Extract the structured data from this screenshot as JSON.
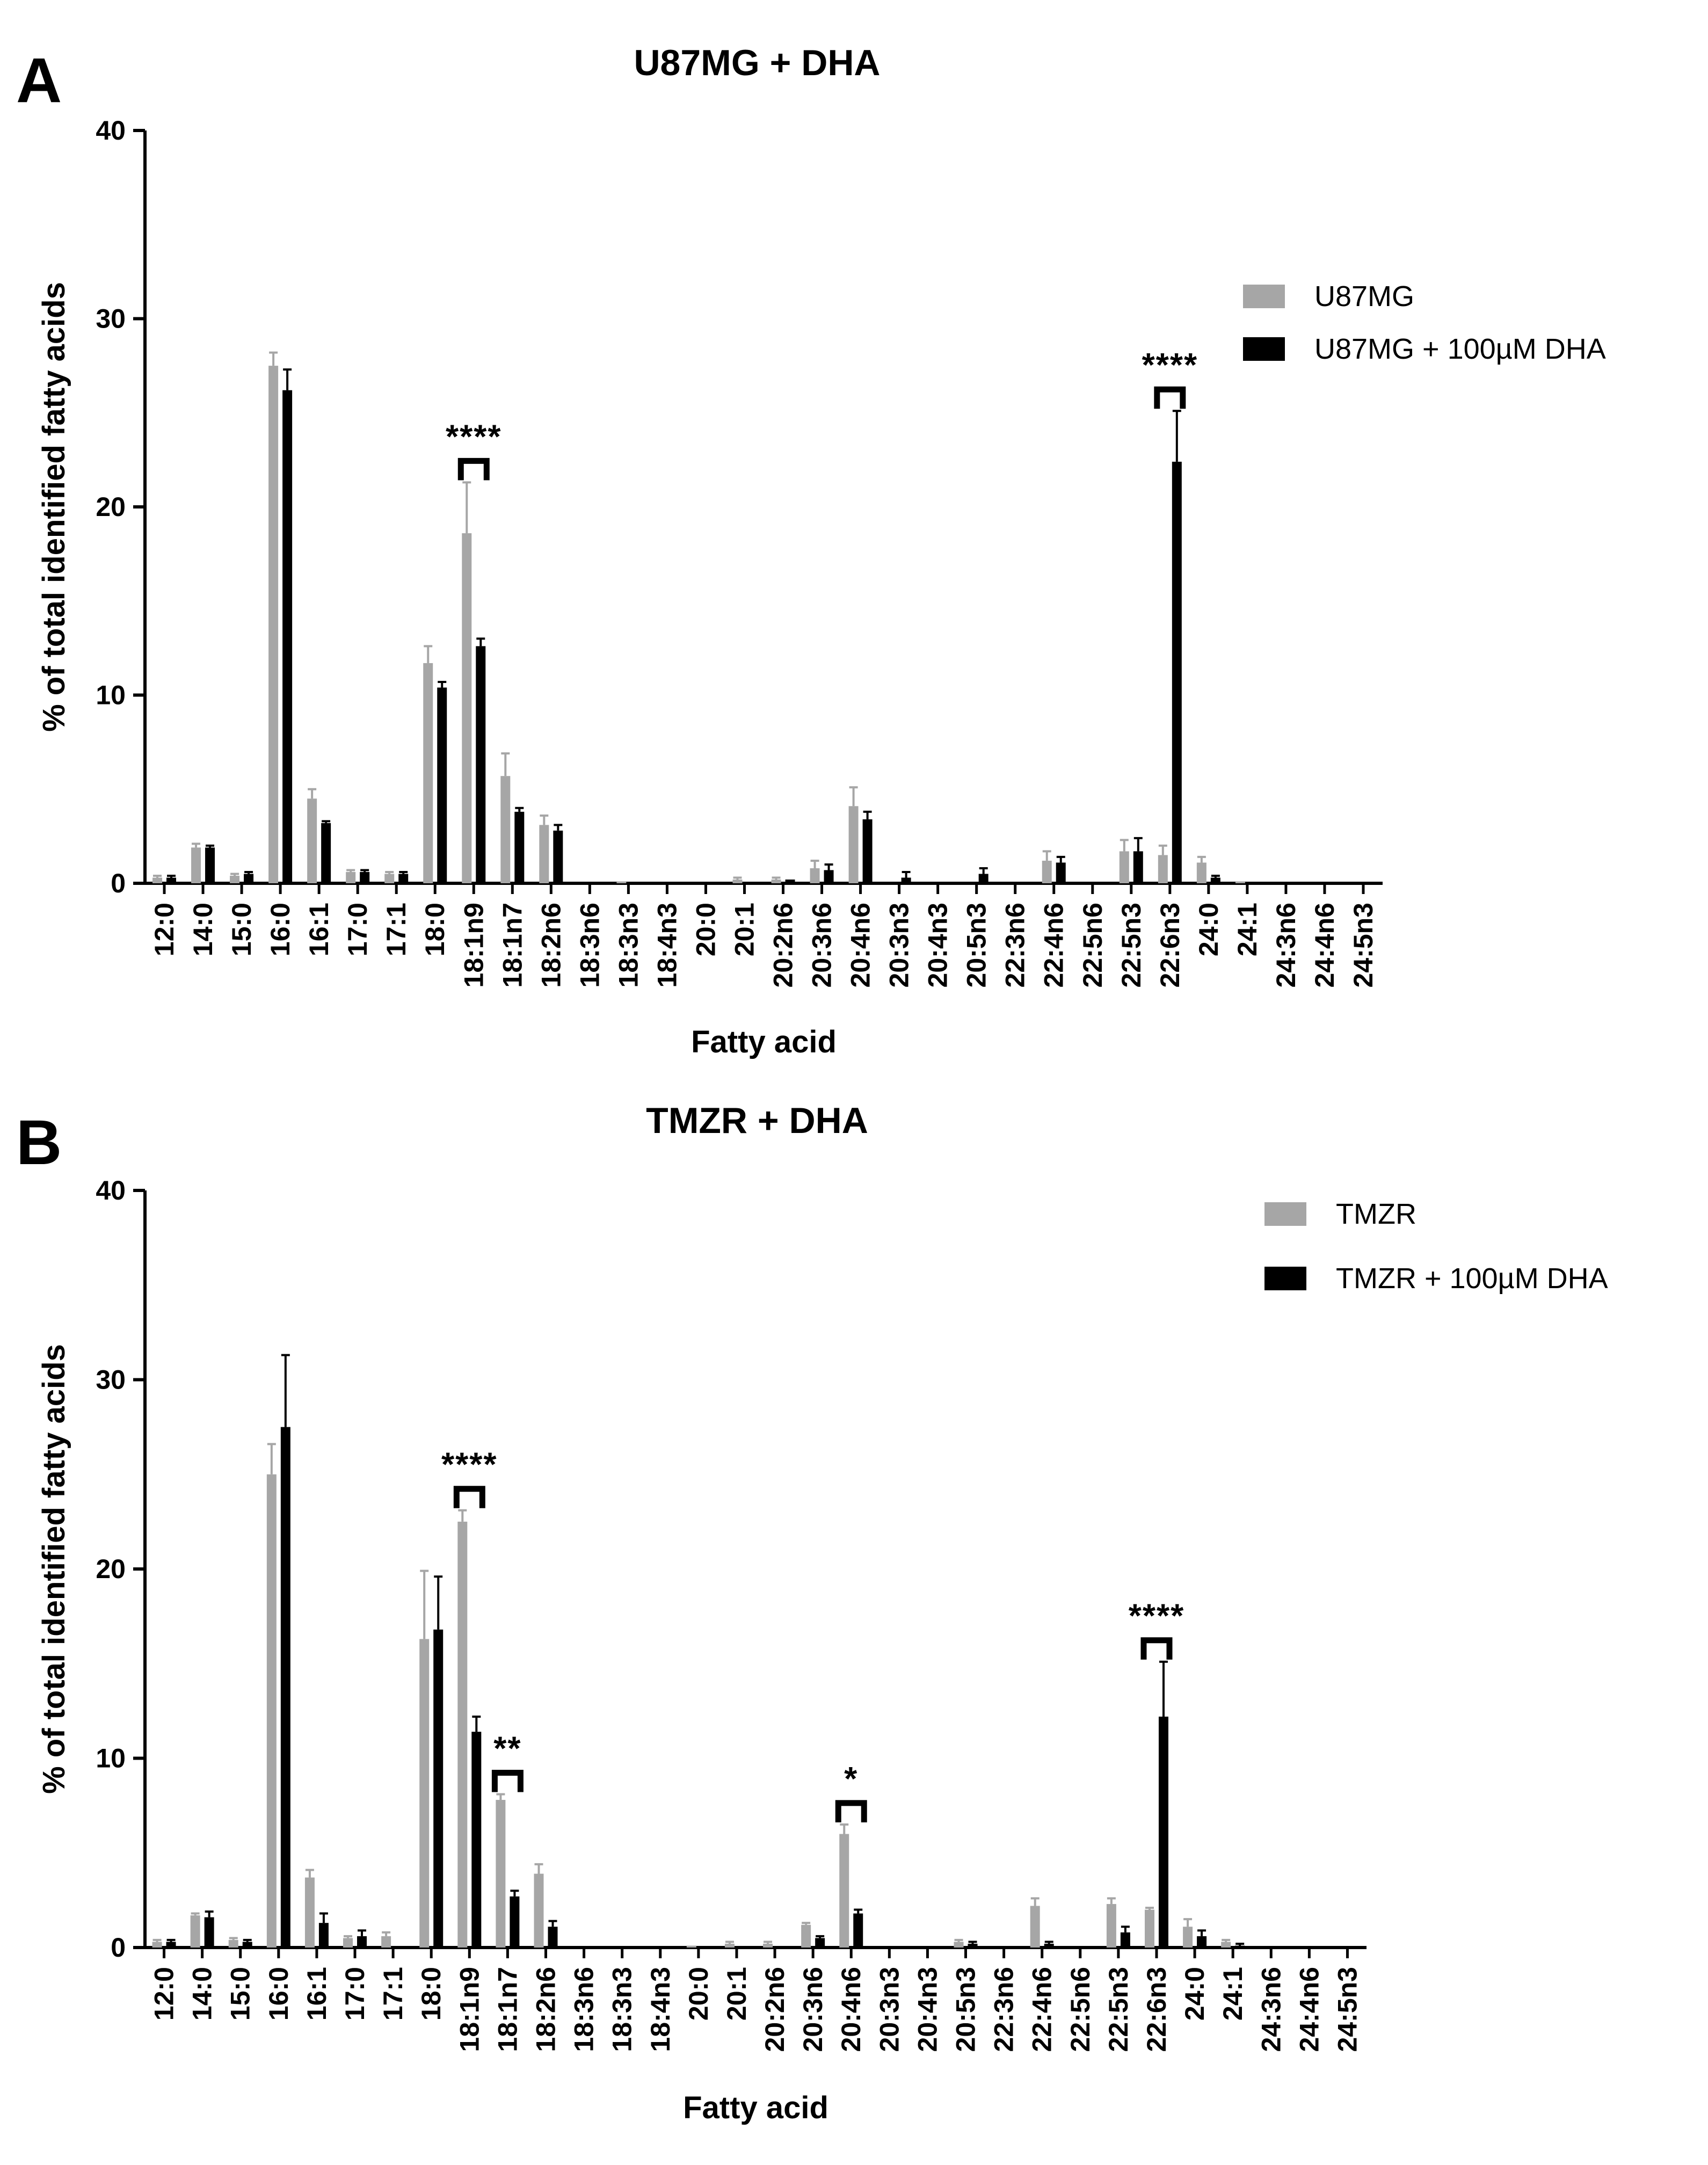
{
  "panels": [
    {
      "letter": "A"
    },
    {
      "letter": "B"
    }
  ],
  "chart_data": [
    {
      "type": "bar",
      "title": "U87MG + DHA",
      "xlabel": "Fatty acid",
      "ylabel": "% of total identified fatty acids",
      "ylim": [
        0,
        40
      ],
      "yticks": [
        "0",
        "10",
        "20",
        "30",
        "40"
      ],
      "legend_position": "top-right",
      "categories": [
        "12:0",
        "14:0",
        "15:0",
        "16:0",
        "16:1",
        "17:0",
        "17:1",
        "18:0",
        "18:1n9",
        "18:1n7",
        "18:2n6",
        "18:3n6",
        "18:3n3",
        "18:4n3",
        "20:0",
        "20:1",
        "20:2n6",
        "20:3n6",
        "20:4n6",
        "20:3n3",
        "20:4n3",
        "20:5n3",
        "22:3n6",
        "22:4n6",
        "22:5n6",
        "22:5n3",
        "22:6n3",
        "24:0",
        "24:1",
        "24:3n6",
        "24:4n6",
        "24:5n3"
      ],
      "series": [
        {
          "name": "U87MG",
          "color": "#a6a6a6",
          "values": [
            0.3,
            1.9,
            0.4,
            27.5,
            4.5,
            0.6,
            0.5,
            11.7,
            18.6,
            5.7,
            3.1,
            0,
            0.1,
            0,
            0,
            0.2,
            0.2,
            0.8,
            4.1,
            0,
            0,
            0,
            0,
            1.2,
            0,
            1.7,
            1.5,
            1.1,
            0.1,
            0,
            0,
            0
          ],
          "errors": [
            0.1,
            0.2,
            0.1,
            0.7,
            0.5,
            0.1,
            0.1,
            0.9,
            2.7,
            1.2,
            0.5,
            0,
            0,
            0,
            0,
            0.1,
            0.1,
            0.4,
            1.0,
            0,
            0,
            0,
            0,
            0.5,
            0,
            0.6,
            0.5,
            0.3,
            0,
            0,
            0,
            0
          ]
        },
        {
          "name": "U87MG + 100µM DHA",
          "color": "#000000",
          "values": [
            0.3,
            1.9,
            0.5,
            26.2,
            3.2,
            0.6,
            0.5,
            10.4,
            12.6,
            3.8,
            2.8,
            0,
            0,
            0,
            0,
            0,
            0.2,
            0.7,
            3.4,
            0.3,
            0,
            0.5,
            0,
            1.1,
            0,
            1.7,
            22.4,
            0.3,
            0,
            0,
            0,
            0
          ],
          "errors": [
            0.1,
            0.1,
            0.1,
            1.1,
            0.1,
            0.1,
            0.1,
            0.3,
            0.4,
            0.2,
            0.3,
            0,
            0,
            0,
            0,
            0,
            0,
            0.3,
            0.4,
            0.3,
            0,
            0.3,
            0,
            0.3,
            0,
            0.7,
            2.7,
            0.1,
            0,
            0,
            0,
            0
          ]
        }
      ],
      "significance": [
        {
          "category": "18:1n9",
          "label": "****"
        },
        {
          "category": "22:6n3",
          "label": "****"
        }
      ]
    },
    {
      "type": "bar",
      "title": "TMZR + DHA",
      "xlabel": "Fatty acid",
      "ylabel": "% of total identified fatty acids",
      "ylim": [
        0,
        40
      ],
      "yticks": [
        "0",
        "10",
        "20",
        "30",
        "40"
      ],
      "legend_position": "top-right",
      "categories": [
        "12:0",
        "14:0",
        "15:0",
        "16:0",
        "16:1",
        "17:0",
        "17:1",
        "18:0",
        "18:1n9",
        "18:1n7",
        "18:2n6",
        "18:3n6",
        "18:3n3",
        "18:4n3",
        "20:0",
        "20:1",
        "20:2n6",
        "20:3n6",
        "20:4n6",
        "20:3n3",
        "20:4n3",
        "20:5n3",
        "22:3n6",
        "22:4n6",
        "22:5n6",
        "22:5n3",
        "22:6n3",
        "24:0",
        "24:1",
        "24:3n6",
        "24:4n6",
        "24:5n3"
      ],
      "series": [
        {
          "name": "TMZR",
          "color": "#a6a6a6",
          "values": [
            0.3,
            1.7,
            0.4,
            25.0,
            3.7,
            0.5,
            0.6,
            16.3,
            22.5,
            7.8,
            3.9,
            0,
            0,
            0,
            0.1,
            0.2,
            0.2,
            1.2,
            6.0,
            0,
            0,
            0.3,
            0,
            2.2,
            0,
            2.3,
            2.0,
            1.1,
            0.3,
            0,
            0,
            0
          ],
          "errors": [
            0.1,
            0.1,
            0.1,
            1.6,
            0.4,
            0.1,
            0.2,
            3.6,
            0.6,
            0.3,
            0.5,
            0,
            0,
            0,
            0,
            0.1,
            0.1,
            0.1,
            0.5,
            0,
            0,
            0.1,
            0,
            0.4,
            0,
            0.3,
            0.1,
            0.4,
            0.1,
            0,
            0,
            0
          ]
        },
        {
          "name": "TMZR + 100µM DHA",
          "color": "#000000",
          "values": [
            0.3,
            1.6,
            0.3,
            27.5,
            1.3,
            0.6,
            0,
            16.8,
            11.4,
            2.7,
            1.1,
            0,
            0,
            0,
            0,
            0,
            0,
            0.5,
            1.8,
            0,
            0,
            0.2,
            0,
            0.2,
            0,
            0.8,
            12.2,
            0.6,
            0.1,
            0,
            0,
            0
          ],
          "errors": [
            0.1,
            0.3,
            0.1,
            3.8,
            0.5,
            0.3,
            0,
            2.8,
            0.8,
            0.3,
            0.3,
            0,
            0,
            0,
            0,
            0,
            0,
            0.1,
            0.2,
            0,
            0,
            0.1,
            0,
            0.1,
            0,
            0.3,
            2.9,
            0.3,
            0.1,
            0,
            0,
            0
          ]
        }
      ],
      "significance": [
        {
          "category": "18:1n9",
          "label": "****"
        },
        {
          "category": "18:1n7",
          "label": "**"
        },
        {
          "category": "20:4n6",
          "label": "*"
        },
        {
          "category": "22:6n3",
          "label": "****"
        }
      ]
    }
  ]
}
